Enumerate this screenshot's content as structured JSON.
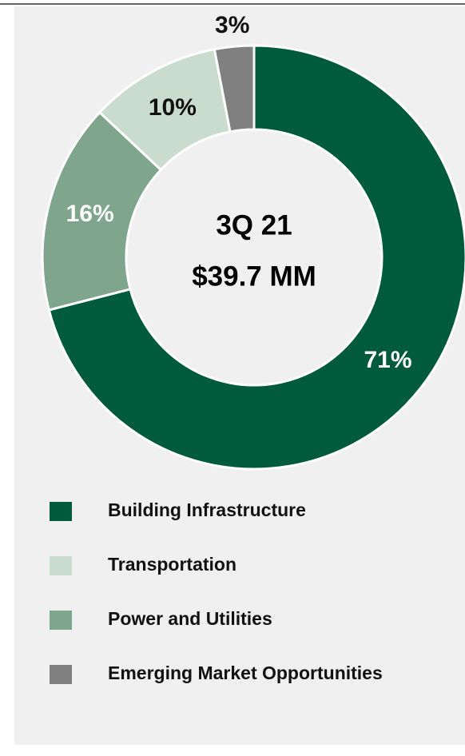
{
  "chart_data": {
    "type": "donut",
    "center_text": [
      "3Q 21",
      "$39.7 MM"
    ],
    "categories": [
      "Building Infrastructure",
      "Transportation",
      "Power and Utilities",
      "Emerging Market Opportunities"
    ],
    "values": [
      71,
      10,
      16,
      3
    ],
    "value_labels": [
      "71%",
      "10%",
      "16%",
      "3%"
    ],
    "colors": [
      "#005a3c",
      "#c9dccd",
      "#7fa58c",
      "#808080"
    ],
    "legend": "bottom"
  }
}
